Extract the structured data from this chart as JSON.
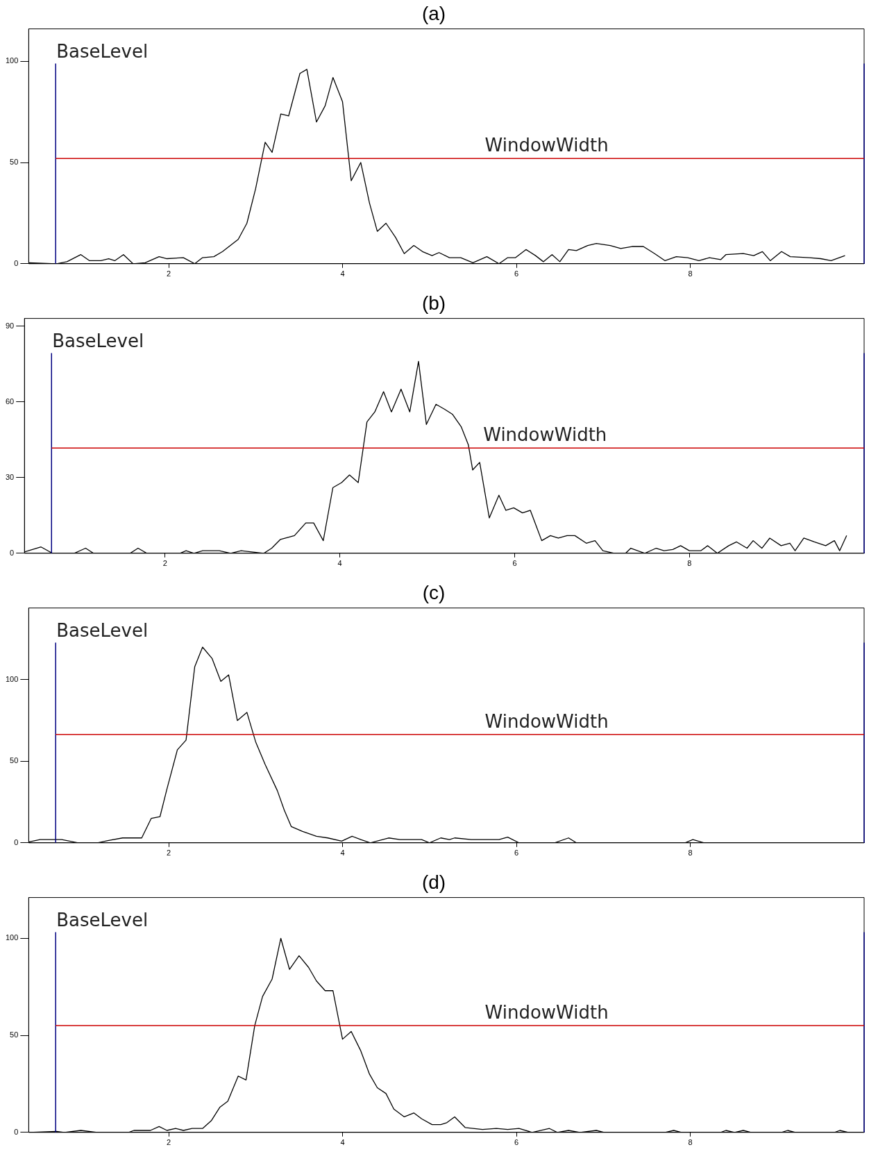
{
  "chart_data": [
    {
      "type": "line",
      "title": "(a)",
      "color": "#000000",
      "xlim": [
        0.39,
        10
      ],
      "xticks": [
        2,
        4,
        6,
        8
      ],
      "ylim": [
        0,
        116
      ],
      "yticks": [
        0,
        50,
        100
      ],
      "x": [
        0.39,
        0.71,
        0.83,
        0.99,
        1.09,
        1.22,
        1.31,
        1.38,
        1.48,
        1.59,
        1.73,
        1.89,
        1.98,
        2.17,
        2.3,
        2.39,
        2.52,
        2.62,
        2.71,
        2.8,
        2.9,
        3.0,
        3.11,
        3.19,
        3.29,
        3.38,
        3.51,
        3.59,
        3.7,
        3.8,
        3.89,
        4.0,
        4.1,
        4.21,
        4.31,
        4.4,
        4.5,
        4.61,
        4.71,
        4.82,
        4.92,
        5.03,
        5.11,
        5.23,
        5.36,
        5.5,
        5.66,
        5.8,
        5.9,
        5.99,
        6.11,
        6.22,
        6.31,
        6.41,
        6.5,
        6.6,
        6.69,
        6.82,
        6.92,
        7.08,
        7.2,
        7.33,
        7.46,
        7.59,
        7.71,
        7.84,
        7.97,
        8.1,
        8.22,
        8.35,
        8.41,
        8.61,
        8.73,
        8.83,
        8.92,
        9.05,
        9.15,
        9.37,
        9.5,
        9.62,
        9.78
      ],
      "values": [
        0.5,
        0,
        1,
        4.5,
        1.5,
        1.5,
        2.5,
        1.5,
        4.5,
        0,
        0.5,
        3.5,
        2.5,
        3,
        0,
        3,
        3.5,
        6,
        9,
        12,
        20,
        37,
        60,
        55,
        74,
        73,
        94,
        96,
        70,
        78,
        92,
        80,
        41,
        50,
        30,
        16,
        20,
        13,
        5,
        9,
        6,
        4,
        5.5,
        3,
        3,
        0.5,
        3.5,
        0,
        3,
        3,
        7,
        4,
        1,
        4.5,
        1,
        7,
        6.5,
        9,
        10,
        9,
        7.5,
        8.5,
        8.5,
        5,
        1.5,
        3.5,
        3,
        1.5,
        3,
        2,
        4.5,
        5,
        4,
        6,
        1.5,
        6,
        3.5,
        3,
        2.5,
        1.5,
        4
      ],
      "ref_lines": [
        {
          "axis": "x",
          "value": 0.7,
          "label": "BaseLevel",
          "color": "#000080"
        },
        {
          "axis": "x",
          "value": 10,
          "color": "#000080"
        },
        {
          "axis": "y",
          "value": 52,
          "label": "WindowWidth",
          "color": "#cc0000"
        }
      ]
    },
    {
      "type": "line",
      "title": "(b)",
      "color": "#000000",
      "xlim": [
        0.39,
        10
      ],
      "xticks": [
        2,
        4,
        6,
        8
      ],
      "ylim": [
        0,
        93
      ],
      "yticks": [
        0,
        30,
        60,
        90
      ],
      "x": [
        0.39,
        0.58,
        0.71,
        0.96,
        1.09,
        1.18,
        1.6,
        1.69,
        1.79,
        2.17,
        2.24,
        2.33,
        2.43,
        2.62,
        2.75,
        2.87,
        3.13,
        3.22,
        3.32,
        3.48,
        3.61,
        3.7,
        3.81,
        3.92,
        4.02,
        4.11,
        4.21,
        4.31,
        4.4,
        4.5,
        4.59,
        4.7,
        4.8,
        4.9,
        4.99,
        5.1,
        5.2,
        5.29,
        5.39,
        5.47,
        5.52,
        5.6,
        5.71,
        5.82,
        5.9,
        5.99,
        6.09,
        6.18,
        6.31,
        6.41,
        6.5,
        6.6,
        6.69,
        6.82,
        6.92,
        7.01,
        7.14,
        7.27,
        7.33,
        7.49,
        7.62,
        7.71,
        7.81,
        7.9,
        8.0,
        8.13,
        8.21,
        8.32,
        8.45,
        8.54,
        8.66,
        8.73,
        8.83,
        8.92,
        9.05,
        9.15,
        9.21,
        9.31,
        9.43,
        9.56,
        9.66,
        9.72,
        9.8
      ],
      "values": [
        0.5,
        2.5,
        0,
        0,
        2,
        0,
        0,
        2,
        0,
        0,
        1,
        0,
        1,
        1,
        0,
        1,
        0,
        2,
        5.5,
        7,
        12,
        12,
        5,
        26,
        28,
        31,
        28,
        52,
        56,
        64,
        56,
        65,
        56,
        76,
        51,
        59,
        57,
        55,
        50,
        43,
        33,
        36,
        14,
        23,
        17,
        18,
        16,
        17,
        5,
        7,
        6,
        7,
        7,
        4,
        5,
        1,
        0,
        0,
        2,
        0,
        2,
        1,
        1.5,
        3,
        1,
        1,
        3,
        0,
        3,
        4.5,
        2,
        5,
        2,
        6,
        3,
        4,
        1,
        6,
        4.5,
        3,
        5,
        1,
        7
      ],
      "ref_lines": [
        {
          "axis": "x",
          "value": 0.7,
          "label": "BaseLevel",
          "color": "#000080"
        },
        {
          "axis": "x",
          "value": 10,
          "color": "#000080"
        },
        {
          "axis": "y",
          "value": 41.7,
          "label": "WindowWidth",
          "color": "#cc0000"
        }
      ]
    },
    {
      "type": "line",
      "title": "(c)",
      "color": "#000000",
      "xlim": [
        0.39,
        10
      ],
      "xticks": [
        2,
        4,
        6,
        8
      ],
      "ylim": [
        0,
        144
      ],
      "yticks": [
        0,
        50,
        100
      ],
      "x": [
        0.39,
        0.52,
        0.77,
        0.96,
        1.18,
        1.31,
        1.47,
        1.69,
        1.8,
        1.9,
        1.98,
        2.1,
        2.2,
        2.3,
        2.39,
        2.5,
        2.6,
        2.69,
        2.79,
        2.9,
        3.0,
        3.11,
        3.25,
        3.33,
        3.41,
        3.54,
        3.7,
        3.83,
        3.99,
        4.11,
        4.21,
        4.32,
        4.53,
        4.66,
        4.91,
        5.0,
        5.13,
        5.23,
        5.29,
        5.48,
        5.8,
        5.9,
        6.03,
        6.44,
        6.6,
        6.69,
        7.94,
        8.03,
        8.16,
        9.94
      ],
      "values": [
        0.5,
        2,
        2,
        0,
        0,
        1.5,
        3,
        3,
        15,
        16,
        33,
        57,
        63,
        108,
        120,
        113,
        99,
        103,
        75,
        80,
        62,
        48,
        32,
        20,
        10,
        7,
        4,
        3,
        1,
        4,
        2,
        0,
        3,
        2,
        2,
        0,
        3,
        2,
        3,
        2,
        2,
        3.5,
        0,
        0,
        3,
        0,
        0,
        2,
        0,
        0
      ],
      "ref_lines": [
        {
          "axis": "x",
          "value": 0.7,
          "label": "BaseLevel",
          "color": "#000080"
        },
        {
          "axis": "x",
          "value": 10,
          "color": "#000080"
        },
        {
          "axis": "y",
          "value": 66.4,
          "label": "WindowWidth",
          "color": "#cc0000"
        }
      ]
    },
    {
      "type": "line",
      "title": "(d)",
      "color": "#000000",
      "xlim": [
        0.39,
        10
      ],
      "xticks": [
        2,
        4,
        6,
        8
      ],
      "ylim": [
        0,
        121
      ],
      "yticks": [
        0,
        50,
        100
      ],
      "x": [
        0.39,
        0.71,
        0.8,
        0.99,
        1.18,
        1.54,
        1.6,
        1.79,
        1.89,
        1.98,
        2.08,
        2.17,
        2.27,
        2.39,
        2.49,
        2.59,
        2.68,
        2.8,
        2.89,
        2.99,
        3.08,
        3.19,
        3.29,
        3.39,
        3.5,
        3.61,
        3.7,
        3.8,
        3.89,
        4.0,
        4.1,
        4.21,
        4.31,
        4.4,
        4.5,
        4.59,
        4.71,
        4.82,
        4.91,
        5.03,
        5.13,
        5.2,
        5.29,
        5.41,
        5.61,
        5.77,
        5.9,
        6.03,
        6.18,
        6.38,
        6.47,
        6.6,
        6.73,
        6.92,
        7.01,
        7.71,
        7.81,
        7.9,
        8.35,
        8.41,
        8.51,
        8.61,
        8.7,
        9.05,
        9.12,
        9.21,
        9.66,
        9.72,
        9.82
      ],
      "values": [
        0,
        0.5,
        0,
        1,
        0,
        0,
        1,
        1,
        3,
        1,
        2,
        1,
        2,
        2,
        6,
        13,
        16,
        29,
        27,
        55,
        70,
        79,
        100,
        84,
        91,
        85,
        78,
        73,
        73,
        48,
        52,
        42,
        30,
        23,
        20,
        12,
        8,
        10,
        7,
        4,
        4,
        5,
        8,
        2.5,
        1.5,
        2,
        1.5,
        2,
        0,
        2,
        0,
        1,
        0,
        1,
        0,
        0,
        1,
        0,
        0,
        1,
        0,
        1,
        0,
        0,
        1,
        0,
        0,
        1,
        0
      ],
      "ref_lines": [
        {
          "axis": "x",
          "value": 0.7,
          "label": "BaseLevel",
          "color": "#000080"
        },
        {
          "axis": "x",
          "value": 10,
          "color": "#000080"
        },
        {
          "axis": "y",
          "value": 55,
          "label": "WindowWidth",
          "color": "#cc0000"
        }
      ]
    }
  ]
}
